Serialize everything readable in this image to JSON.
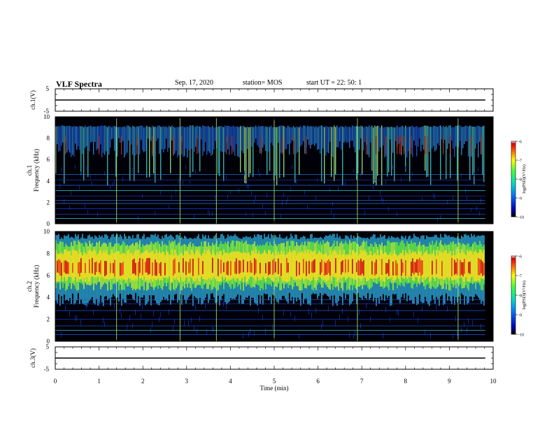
{
  "header": {
    "title": "VLF Spectra",
    "date": "Sep. 17, 2020",
    "station": "station= MOS",
    "start": "start  UT  =   22: 50: 1"
  },
  "chart_data": [
    {
      "type": "line",
      "name": "ch1-waveform",
      "ylabel": "ch.1(V)",
      "ylim": [
        -5,
        5
      ],
      "yticks": [
        "5",
        "-5"
      ],
      "x": [
        0,
        9.82
      ],
      "y": [
        0,
        0
      ]
    },
    {
      "type": "heatmap",
      "name": "ch1-spectrogram",
      "ylabel": "ch.1\nFrequency (kHz)",
      "xlim": [
        0,
        10
      ],
      "ylim": [
        0,
        10
      ],
      "data_xmax": 9.82,
      "yticks": [
        "0",
        "2",
        "4",
        "6",
        "8",
        "10"
      ],
      "colorbar": {
        "label": "log(PSD)(V²/Hz)",
        "range": [
          -10,
          -6
        ],
        "ticks": [
          "-6",
          "-7",
          "-8",
          "-9",
          "-10"
        ]
      }
    },
    {
      "type": "heatmap",
      "name": "ch2-spectrogram",
      "ylabel": "ch.2\nFrequency (kHz)",
      "xlim": [
        0,
        10
      ],
      "ylim": [
        0,
        10
      ],
      "data_xmax": 9.82,
      "yticks": [
        "0",
        "2",
        "4",
        "6",
        "8",
        "10"
      ],
      "colorbar": {
        "label": "log(PSD)(V²/Hz)",
        "range": [
          -10,
          -6
        ],
        "ticks": [
          "-6",
          "-7",
          "-8",
          "-9",
          "-10"
        ]
      }
    },
    {
      "type": "line",
      "name": "ch3-waveform",
      "ylabel": "ch.3(V)",
      "ylim": [
        -5,
        5
      ],
      "yticks": [
        "5",
        "-5"
      ],
      "x": [
        0,
        9.82
      ],
      "y": [
        0,
        0
      ]
    }
  ],
  "xaxis": {
    "label": "Time (min)",
    "ticks": [
      "0",
      "1",
      "2",
      "3",
      "4",
      "5",
      "6",
      "7",
      "8",
      "9",
      "10"
    ]
  }
}
